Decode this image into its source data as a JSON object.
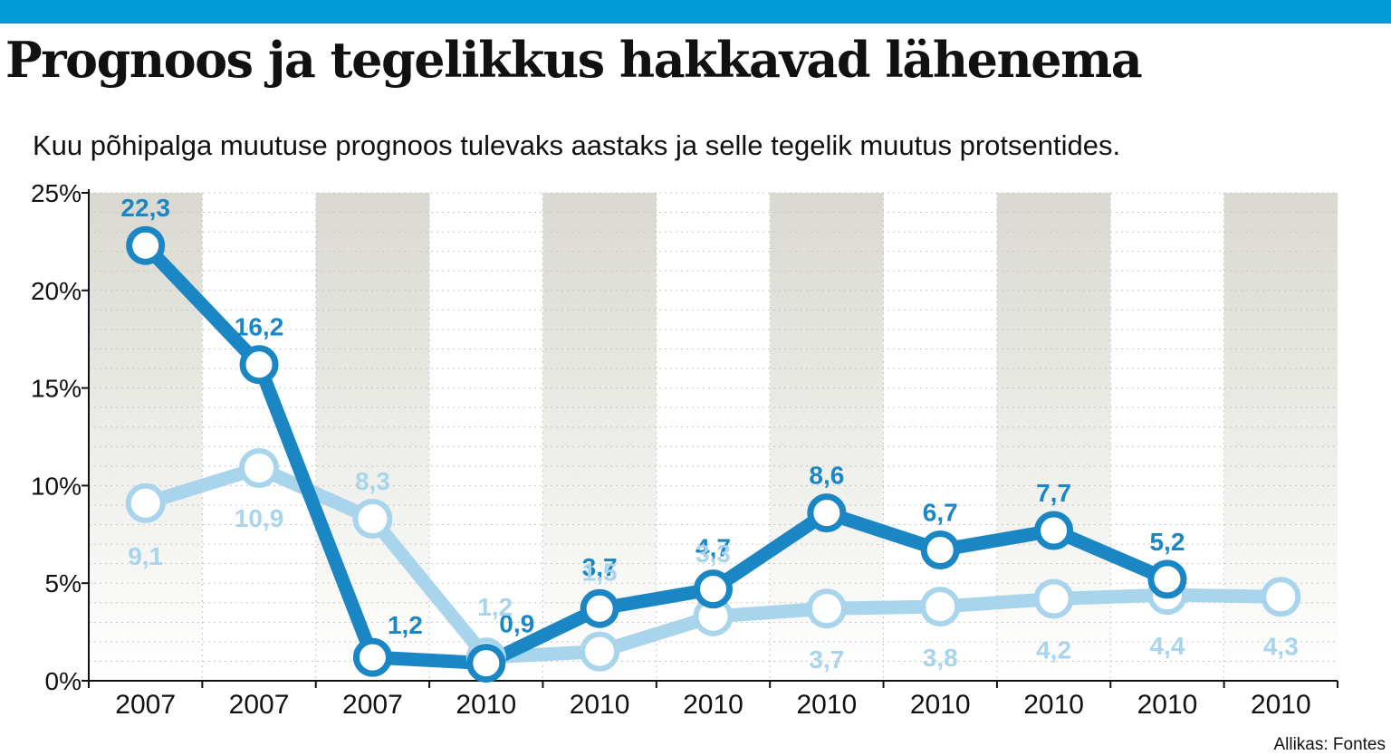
{
  "header": {
    "title": "Prognoos ja tegelikkus hakkavad lähenema",
    "subtitle": "Kuu põhipalga muutuse prognoos tulevaks aastaks ja selle tegelik muutus protsentides.",
    "source": "Allikas: Fontes"
  },
  "colors": {
    "top_bar": "#009ad8",
    "series_dark": "#1a87c4",
    "series_light": "#a8d4ec",
    "band": "#e2e2dc"
  },
  "chart_data": {
    "type": "line",
    "title": "Prognoos ja tegelikkus hakkavad lähenema",
    "subtitle": "Kuu põhipalga muutuse prognoos tulevaks aastaks ja selle tegelik muutus protsentides.",
    "categories": [
      "2007",
      "2007",
      "2007",
      "2010",
      "2010",
      "2010",
      "2010",
      "2010",
      "2010",
      "2010",
      "2010"
    ],
    "y_ticks": [
      "0%",
      "5%",
      "10%",
      "15%",
      "20%",
      "25%"
    ],
    "ylim": [
      0,
      25
    ],
    "grid": true,
    "legend": "none",
    "series": [
      {
        "color": "#1a87c4",
        "values": [
          22.3,
          16.2,
          1.2,
          0.9,
          3.7,
          4.7,
          8.6,
          6.7,
          7.7,
          5.2,
          null
        ],
        "labels": [
          "22,3",
          "16,2",
          "1,2",
          "0,9",
          "3,7",
          "4,7",
          "8,6",
          "6,7",
          "7,7",
          "5,2",
          ""
        ]
      },
      {
        "color": "#a8d4ec",
        "values": [
          9.1,
          10.9,
          8.3,
          1.2,
          1.5,
          3.3,
          3.7,
          3.8,
          4.2,
          4.4,
          4.3
        ],
        "labels": [
          "9,1",
          "10,9",
          "8,3",
          "1,2",
          "1,5",
          "3,3",
          "3,7",
          "3,8",
          "4,2",
          "4,4",
          "4,3"
        ]
      }
    ],
    "source": "Allikas: Fontes"
  }
}
